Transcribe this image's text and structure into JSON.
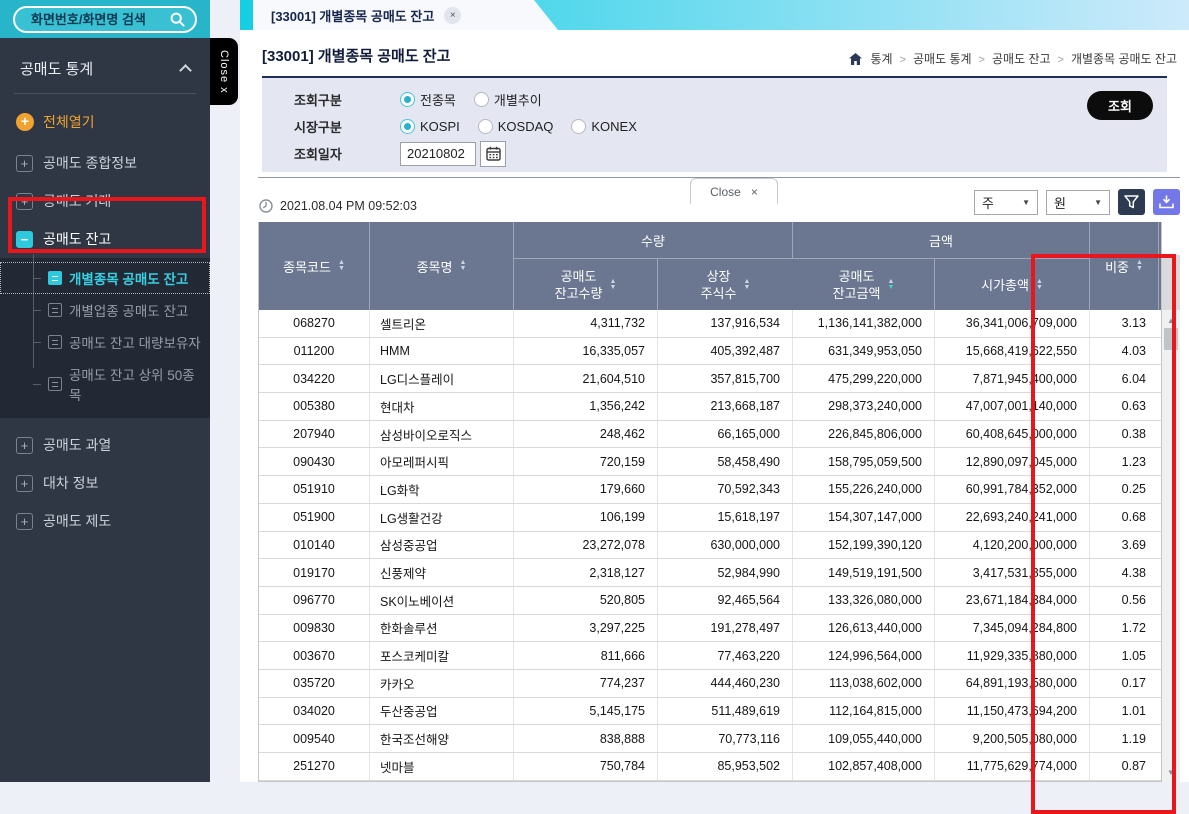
{
  "sidebar": {
    "search": {
      "placeholder": "화면번호/화면명 검색"
    },
    "close_vertical_label": "Close x",
    "section_title": "공매도 통계",
    "expand_all_label": "전체열기",
    "items": [
      {
        "label": "공매도 종합정보"
      },
      {
        "label": "공매도 거래"
      },
      {
        "label": "공매도 잔고",
        "expanded": true
      },
      {
        "label": "공매도 과열"
      },
      {
        "label": "대차 정보"
      },
      {
        "label": "공매도 제도"
      }
    ],
    "subitems": [
      {
        "label": "개별종목 공매도 잔고",
        "active": true
      },
      {
        "label": "개별업종 공매도 잔고"
      },
      {
        "label": "공매도 잔고 대량보유자"
      },
      {
        "label": "공매도 잔고 상위 50종목"
      }
    ]
  },
  "tab": {
    "label": "[33001] 개별종목 공매도 잔고",
    "close": "×"
  },
  "page": {
    "title": "[33001] 개별종목 공매도 잔고"
  },
  "breadcrumb": {
    "items": [
      "통계",
      "공매도 통계",
      "공매도 잔고",
      "개별종목 공매도 잔고"
    ],
    "separator": ">"
  },
  "form": {
    "rows": [
      {
        "label": "조회구분",
        "options": [
          {
            "label": "전종목",
            "selected": true
          },
          {
            "label": "개별추이",
            "selected": false
          }
        ]
      },
      {
        "label": "시장구분",
        "options": [
          {
            "label": "KOSPI",
            "selected": true
          },
          {
            "label": "KOSDAQ",
            "selected": false
          },
          {
            "label": "KONEX",
            "selected": false
          }
        ]
      },
      {
        "label": "조회일자"
      }
    ],
    "date_value": "20210802",
    "query_button": "조회"
  },
  "toolbar": {
    "timestamp": "2021.08.04 PM 09:52:03",
    "close_tab_label": "Close",
    "close_tab_x": "×",
    "unit_dropdown_1": "주",
    "unit_dropdown_2": "원"
  },
  "icons": {
    "caret_down": "▼",
    "sort_up": "▲",
    "sort_down": "▼",
    "scroll_up": "▲",
    "scroll_down": "▼",
    "plus": "+",
    "minus": "−"
  },
  "table": {
    "headers": {
      "code": "종목코드",
      "name": "종목명",
      "qty_group": "수량",
      "amt_group": "금액",
      "short_qty_l1": "공매도",
      "short_qty_l2": "잔고수량",
      "listed_l1": "상장",
      "listed_l2": "주식수",
      "short_amt_l1": "공매도",
      "short_amt_l2": "잔고금액",
      "mcap": "시가총액",
      "weight": "비중"
    },
    "rows": [
      {
        "code": "068270",
        "name": "셀트리온",
        "short_qty": "4,311,732",
        "listed": "137,916,534",
        "short_amt": "1,136,141,382,000",
        "mcap": "36,341,006,709,000",
        "weight": "3.13"
      },
      {
        "code": "011200",
        "name": "HMM",
        "short_qty": "16,335,057",
        "listed": "405,392,487",
        "short_amt": "631,349,953,050",
        "mcap": "15,668,419,622,550",
        "weight": "4.03"
      },
      {
        "code": "034220",
        "name": "LG디스플레이",
        "short_qty": "21,604,510",
        "listed": "357,815,700",
        "short_amt": "475,299,220,000",
        "mcap": "7,871,945,400,000",
        "weight": "6.04"
      },
      {
        "code": "005380",
        "name": "현대차",
        "short_qty": "1,356,242",
        "listed": "213,668,187",
        "short_amt": "298,373,240,000",
        "mcap": "47,007,001,140,000",
        "weight": "0.63"
      },
      {
        "code": "207940",
        "name": "삼성바이오로직스",
        "short_qty": "248,462",
        "listed": "66,165,000",
        "short_amt": "226,845,806,000",
        "mcap": "60,408,645,000,000",
        "weight": "0.38"
      },
      {
        "code": "090430",
        "name": "아모레퍼시픽",
        "short_qty": "720,159",
        "listed": "58,458,490",
        "short_amt": "158,795,059,500",
        "mcap": "12,890,097,045,000",
        "weight": "1.23"
      },
      {
        "code": "051910",
        "name": "LG화학",
        "short_qty": "179,660",
        "listed": "70,592,343",
        "short_amt": "155,226,240,000",
        "mcap": "60,991,784,352,000",
        "weight": "0.25"
      },
      {
        "code": "051900",
        "name": "LG생활건강",
        "short_qty": "106,199",
        "listed": "15,618,197",
        "short_amt": "154,307,147,000",
        "mcap": "22,693,240,241,000",
        "weight": "0.68"
      },
      {
        "code": "010140",
        "name": "삼성중공업",
        "short_qty": "23,272,078",
        "listed": "630,000,000",
        "short_amt": "152,199,390,120",
        "mcap": "4,120,200,000,000",
        "weight": "3.69"
      },
      {
        "code": "019170",
        "name": "신풍제약",
        "short_qty": "2,318,127",
        "listed": "52,984,990",
        "short_amt": "149,519,191,500",
        "mcap": "3,417,531,855,000",
        "weight": "4.38"
      },
      {
        "code": "096770",
        "name": "SK이노베이션",
        "short_qty": "520,805",
        "listed": "92,465,564",
        "short_amt": "133,326,080,000",
        "mcap": "23,671,184,384,000",
        "weight": "0.56"
      },
      {
        "code": "009830",
        "name": "한화솔루션",
        "short_qty": "3,297,225",
        "listed": "191,278,497",
        "short_amt": "126,613,440,000",
        "mcap": "7,345,094,284,800",
        "weight": "1.72"
      },
      {
        "code": "003670",
        "name": "포스코케미칼",
        "short_qty": "811,666",
        "listed": "77,463,220",
        "short_amt": "124,996,564,000",
        "mcap": "11,929,335,880,000",
        "weight": "1.05"
      },
      {
        "code": "035720",
        "name": "카카오",
        "short_qty": "774,237",
        "listed": "444,460,230",
        "short_amt": "113,038,602,000",
        "mcap": "64,891,193,580,000",
        "weight": "0.17"
      },
      {
        "code": "034020",
        "name": "두산중공업",
        "short_qty": "5,145,175",
        "listed": "511,489,619",
        "short_amt": "112,164,815,000",
        "mcap": "11,150,473,694,200",
        "weight": "1.01"
      },
      {
        "code": "009540",
        "name": "한국조선해양",
        "short_qty": "838,888",
        "listed": "70,773,116",
        "short_amt": "109,055,440,000",
        "mcap": "9,200,505,080,000",
        "weight": "1.19"
      },
      {
        "code": "251270",
        "name": "넷마블",
        "short_qty": "750,784",
        "listed": "85,953,502",
        "short_amt": "102,857,408,000",
        "mcap": "11,775,629,774,000",
        "weight": "0.87"
      }
    ]
  },
  "colors": {
    "accent_cyan": "#2fc9de",
    "header_slate": "#6b7791",
    "highlight_red": "#e8171e",
    "download_purple": "#7477e8",
    "search_teal": "#28b5ca",
    "orange": "#f0a32f"
  }
}
